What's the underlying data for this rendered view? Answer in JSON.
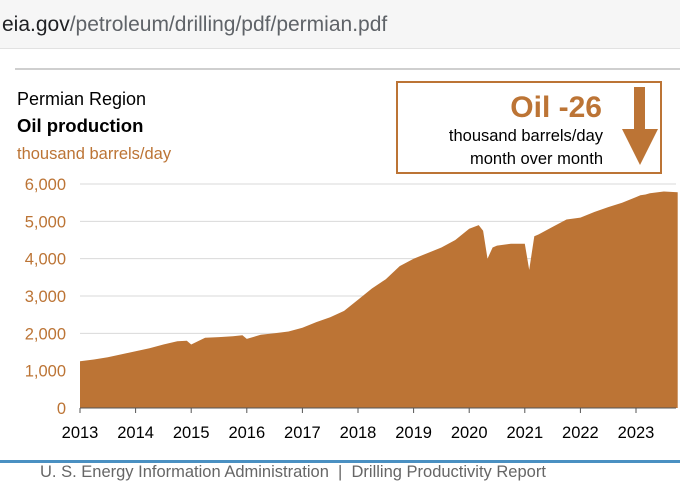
{
  "browser": {
    "url_host": "eia.gov",
    "url_path": "/petroleum/drilling/pdf/permian.pdf"
  },
  "header": {
    "region": "Permian Region",
    "metric": "Oil production",
    "units": "thousand barrels/day"
  },
  "callout": {
    "title": "Oil -26",
    "line1": "thousand barrels/day",
    "line2": "month over month",
    "arrow_icon": "down-arrow-icon"
  },
  "footer": {
    "text": "U. S. Energy Information Administration  |  Drilling Productivity Report"
  },
  "colors": {
    "accent": "#bc7435",
    "area_fill": "#bc7435",
    "grid": "#d9d9d9",
    "footer_rule": "#4a90c2"
  },
  "chart_data": {
    "type": "area",
    "title": "Oil production",
    "subtitle": "Permian Region",
    "ylabel": "thousand barrels/day",
    "xlabel": "",
    "ylim": [
      0,
      6000
    ],
    "xlim": [
      2013.0,
      2023.75
    ],
    "grid": true,
    "legend": "none",
    "y_ticks": [
      0,
      1000,
      2000,
      3000,
      4000,
      5000,
      6000
    ],
    "y_tick_labels": [
      "0",
      "1,000",
      "2,000",
      "3,000",
      "4,000",
      "5,000",
      "6,000"
    ],
    "x_ticks": [
      2013,
      2014,
      2015,
      2016,
      2017,
      2018,
      2019,
      2020,
      2021,
      2022,
      2023
    ],
    "x_tick_labels": [
      "2013",
      "2014",
      "2015",
      "2016",
      "2017",
      "2018",
      "2019",
      "2020",
      "2021",
      "2022",
      "2023"
    ],
    "series": [
      {
        "x": [
          2013.0,
          2013.25,
          2013.5,
          2013.75,
          2014.0,
          2014.25,
          2014.5,
          2014.75,
          2014.92,
          2015.0,
          2015.25,
          2015.5,
          2015.75,
          2015.92,
          2016.0,
          2016.25,
          2016.5,
          2016.75,
          2017.0,
          2017.25,
          2017.5,
          2017.75,
          2018.0,
          2018.25,
          2018.5,
          2018.75,
          2019.0,
          2019.25,
          2019.5,
          2019.75,
          2020.0,
          2020.17,
          2020.25,
          2020.33,
          2020.42,
          2020.5,
          2020.75,
          2021.0,
          2021.08,
          2021.17,
          2021.25,
          2021.5,
          2021.75,
          2022.0,
          2022.25,
          2022.5,
          2022.75,
          2023.0,
          2023.08,
          2023.17,
          2023.25,
          2023.5,
          2023.75
        ],
        "y": [
          1250,
          1300,
          1360,
          1440,
          1520,
          1600,
          1700,
          1790,
          1800,
          1700,
          1880,
          1900,
          1920,
          1950,
          1850,
          1960,
          2000,
          2050,
          2150,
          2300,
          2430,
          2600,
          2900,
          3200,
          3450,
          3800,
          4000,
          4150,
          4300,
          4500,
          4800,
          4900,
          4750,
          4000,
          4300,
          4350,
          4400,
          4400,
          3700,
          4600,
          4650,
          4850,
          5050,
          5100,
          5250,
          5380,
          5500,
          5650,
          5700,
          5720,
          5750,
          5800,
          5780
        ]
      }
    ]
  }
}
